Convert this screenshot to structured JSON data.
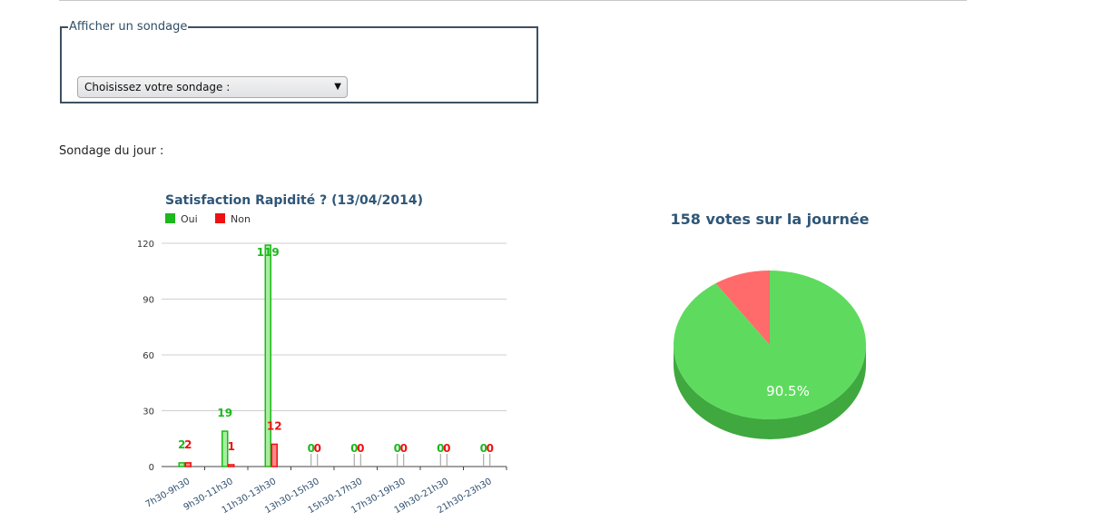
{
  "form": {
    "legend": "Afficher un sondage",
    "select_value": "Choisissez votre sondage :"
  },
  "daily_label": "Sondage du jour :",
  "chart_data": [
    {
      "type": "bar",
      "title": "Satisfaction Rapidité ? (13/04/2014)",
      "categories": [
        "7h30-9h30",
        "9h30-11h30",
        "11h30-13h30",
        "13h30-15h30",
        "15h30-17h30",
        "17h30-19h30",
        "19h30-21h30",
        "21h30-23h30"
      ],
      "series": [
        {
          "name": "Oui",
          "color": "#1cb81c",
          "values": [
            2,
            19,
            119,
            0,
            0,
            0,
            0,
            0
          ]
        },
        {
          "name": "Non",
          "color": "#ee1111",
          "values": [
            2,
            1,
            12,
            0,
            0,
            0,
            0,
            0
          ]
        }
      ],
      "yticks": [
        0,
        30,
        60,
        90,
        120
      ],
      "ylim": [
        0,
        120
      ],
      "grid": true,
      "legend_position": "top-left"
    },
    {
      "type": "pie",
      "title": "158 votes sur la journée",
      "slices": [
        {
          "label": "Oui",
          "value": 90.5,
          "color": "#5edb5e"
        },
        {
          "label": "Non",
          "value": 9.5,
          "color": "#ff6b6b"
        }
      ],
      "data_labels": [
        "90.5%"
      ]
    }
  ]
}
